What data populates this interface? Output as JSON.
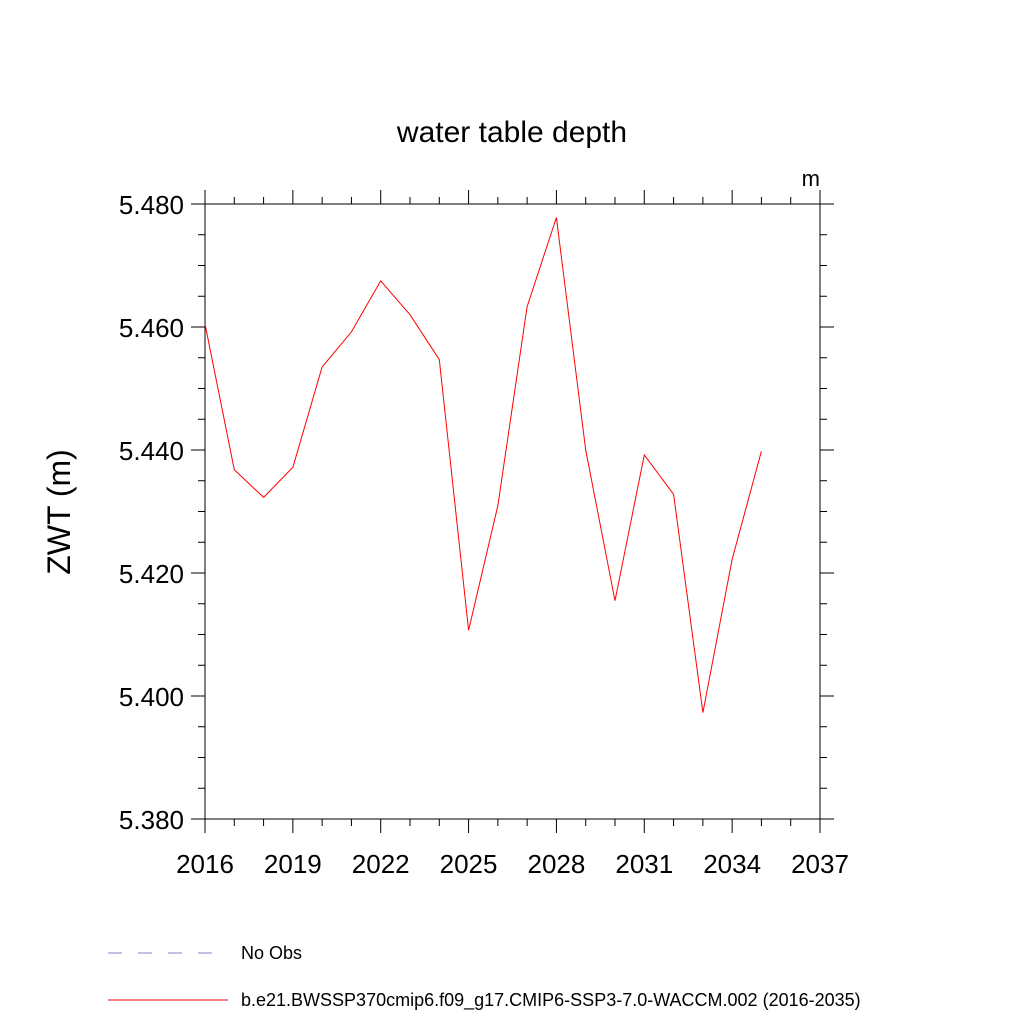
{
  "chart_data": {
    "type": "line",
    "title": "water table depth",
    "units_label": "m",
    "ylabel": "ZWT  (m)",
    "xlabel": "",
    "xlim": [
      2016,
      2037
    ],
    "ylim": [
      5.38,
      5.48
    ],
    "x_ticks": [
      2016,
      2019,
      2022,
      2025,
      2028,
      2031,
      2034,
      2037
    ],
    "y_ticks": [
      "5.380",
      "5.400",
      "5.420",
      "5.440",
      "5.460",
      "5.480"
    ],
    "series": [
      {
        "name": "b.e21.BWSSP370cmip6.f09_g17.CMIP6-SSP3-7.0-WACCM.002 (2016-2035)",
        "color": "#ff0000",
        "x": [
          2016,
          2017,
          2018,
          2019,
          2020,
          2021,
          2022,
          2023,
          2024,
          2025,
          2026,
          2027,
          2028,
          2029,
          2030,
          2031,
          2032,
          2033,
          2034,
          2035
        ],
        "values": [
          5.4605,
          5.4368,
          5.4323,
          5.4372,
          5.4535,
          5.4592,
          5.4675,
          5.462,
          5.4547,
          5.4107,
          5.431,
          5.4633,
          5.4778,
          5.44,
          5.4155,
          5.4392,
          5.4328,
          5.3973,
          5.4222,
          5.4398
        ]
      }
    ],
    "legend": [
      {
        "label": "No Obs",
        "color": "#8080c0",
        "style": "dashed"
      },
      {
        "label": "b.e21.BWSSP370cmip6.f09_g17.CMIP6-SSP3-7.0-WACCM.002 (2016-2035)",
        "color": "#ff0000",
        "style": "solid"
      }
    ],
    "legend_position": "bottom",
    "grid": false
  }
}
